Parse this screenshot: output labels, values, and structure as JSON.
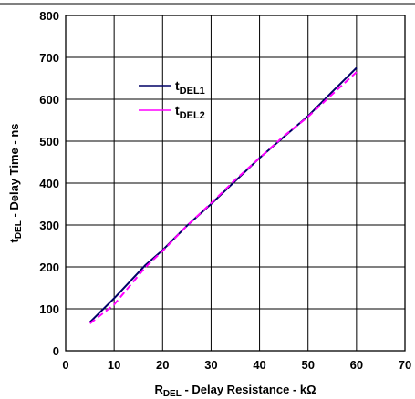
{
  "chart_data": {
    "type": "line",
    "xlabel": {
      "main": "R",
      "sub": "DEL",
      "rest": " - Delay Resistance - kΩ"
    },
    "ylabel": {
      "main": "t",
      "sub": "DEL",
      "rest": " - Delay Time - ns"
    },
    "xlim": [
      0,
      70
    ],
    "ylim": [
      0,
      800
    ],
    "x_ticks": [
      0,
      10,
      20,
      30,
      40,
      50,
      60,
      70
    ],
    "y_ticks": [
      0,
      100,
      200,
      300,
      400,
      500,
      600,
      700,
      800
    ],
    "grid": true,
    "legend_position": "top-left inside plot",
    "series": [
      {
        "name": "DEL1",
        "name_prefix": "t",
        "color": "#000066",
        "style": "solid",
        "x": [
          5,
          10,
          16.5,
          20,
          25,
          30,
          35,
          40,
          45,
          50,
          55,
          60
        ],
        "y": [
          68,
          125,
          205,
          240,
          298,
          350,
          405,
          460,
          510,
          560,
          618,
          675
        ]
      },
      {
        "name": "DEL2",
        "name_prefix": "t",
        "color": "#ff00ff",
        "style": "dashed",
        "x": [
          5,
          10,
          16.5,
          20,
          25,
          30,
          35,
          40,
          45,
          50,
          55,
          60
        ],
        "y": [
          65,
          110,
          200,
          238,
          298,
          352,
          408,
          460,
          512,
          558,
          612,
          665
        ]
      }
    ]
  }
}
